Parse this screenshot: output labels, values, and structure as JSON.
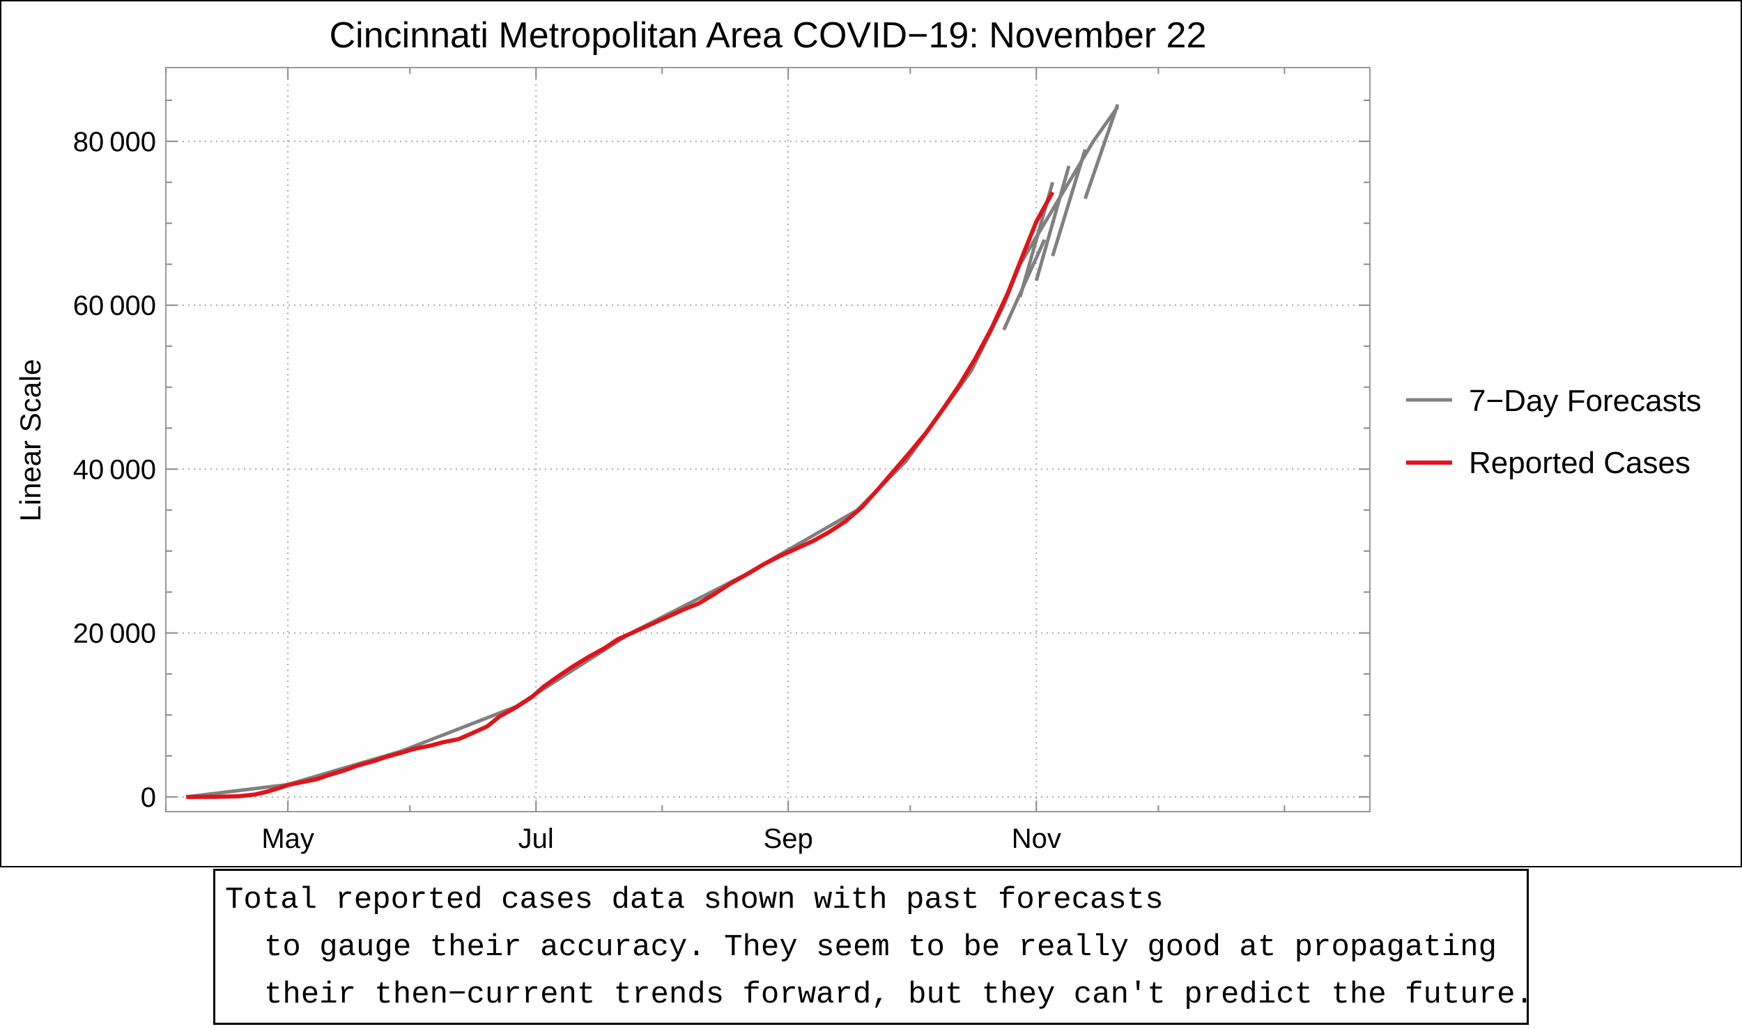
{
  "chart_data": {
    "type": "line",
    "title": "Cincinnati Metropolitan Area COVID−19: November 22",
    "xlabel": "",
    "ylabel": "Linear Scale",
    "x_ticks": [
      "May",
      "Jul",
      "Sep",
      "Nov"
    ],
    "x_range_days": [
      -30,
      266
    ],
    "x_tick_days": [
      0,
      61,
      123,
      184
    ],
    "y_ticks": [
      "0",
      "20 000",
      "40 000",
      "60 000",
      "80 000"
    ],
    "y_tick_values": [
      0,
      20000,
      40000,
      60000,
      80000
    ],
    "ylim": [
      -1800,
      89000
    ],
    "grid": true,
    "legend_position": "right",
    "series": [
      {
        "name": "Reported Cases",
        "color": "#e0141a",
        "x_days": [
          -25,
          -18,
          -12,
          -8,
          -5,
          -2,
          0,
          3,
          7,
          10,
          14,
          17,
          21,
          24,
          28,
          31,
          35,
          38,
          42,
          45,
          49,
          52,
          56,
          60,
          63,
          67,
          70,
          74,
          78,
          81,
          85,
          89,
          93,
          97,
          101,
          105,
          109,
          113,
          117,
          121,
          125,
          129,
          133,
          137,
          141,
          145,
          149,
          153,
          157,
          161,
          165,
          169,
          173,
          177,
          181,
          184,
          188,
          192,
          196,
          200,
          204,
          206
        ],
        "values": [
          0,
          10,
          80,
          300,
          650,
          1100,
          1450,
          1750,
          2150,
          2650,
          3250,
          3800,
          4350,
          4850,
          5400,
          5850,
          6250,
          6650,
          7050,
          7700,
          8600,
          9800,
          10900,
          12200,
          13500,
          14900,
          15900,
          17100,
          18200,
          19200,
          20100,
          21000,
          21900,
          22800,
          23600,
          24800,
          26100,
          27200,
          28400,
          29400,
          30300,
          31200,
          32300,
          33600,
          35300,
          37500,
          39800,
          42100,
          44500,
          47300,
          50200,
          53500,
          57200,
          61500,
          66500,
          70200,
          73800,
          null,
          null,
          null,
          null,
          null
        ]
      },
      {
        "name": "7−Day Forecasts",
        "color": "#808080",
        "x_days": [
          -25,
          0,
          28,
          56,
          84,
          112,
          140,
          152,
          168,
          176,
          180,
          186,
          192,
          198,
          204,
          208,
          212,
          216,
          220
        ],
        "values": [
          0,
          1500,
          5600,
          11000,
          19900,
          27000,
          35000,
          41000,
          52000,
          60000,
          65000,
          70000,
          75000,
          80000,
          84200,
          null,
          null,
          null,
          null
        ]
      }
    ]
  },
  "legend": {
    "forecasts": "7−Day Forecasts",
    "reported": "Reported Cases"
  },
  "caption": {
    "line1": "Total reported cases data shown with past forecasts",
    "line2": "to gauge their accuracy. They seem to be really good at propagating",
    "line3": "their then−current trends forward, but they can't predict the future."
  }
}
